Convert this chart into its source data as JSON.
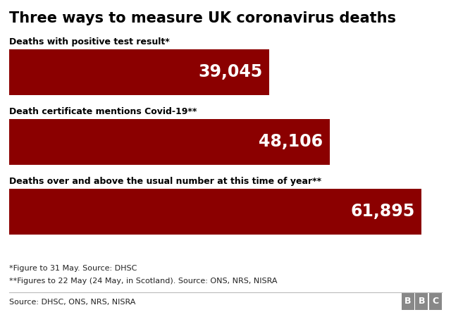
{
  "title": "Three ways to measure UK coronavirus deaths",
  "title_fontsize": 15,
  "background_color": "#ffffff",
  "bar_color": "#8B0000",
  "categories": [
    "Deaths with positive test result*",
    "Death certificate mentions Covid-19**",
    "Deaths over and above the usual number at this time of year**"
  ],
  "values": [
    39045,
    48106,
    61895
  ],
  "value_labels": [
    "39,045",
    "48,106",
    "61,895"
  ],
  "max_value": 65000,
  "footnote1": "*Figure to 31 May. Source: DHSC",
  "footnote2": "**Figures to 22 May (24 May, in Scotland). Source: ONS, NRS, NISRA",
  "source": "Source: DHSC, ONS, NRS, NISRA",
  "bbc_letters": [
    "B",
    "B",
    "C"
  ]
}
